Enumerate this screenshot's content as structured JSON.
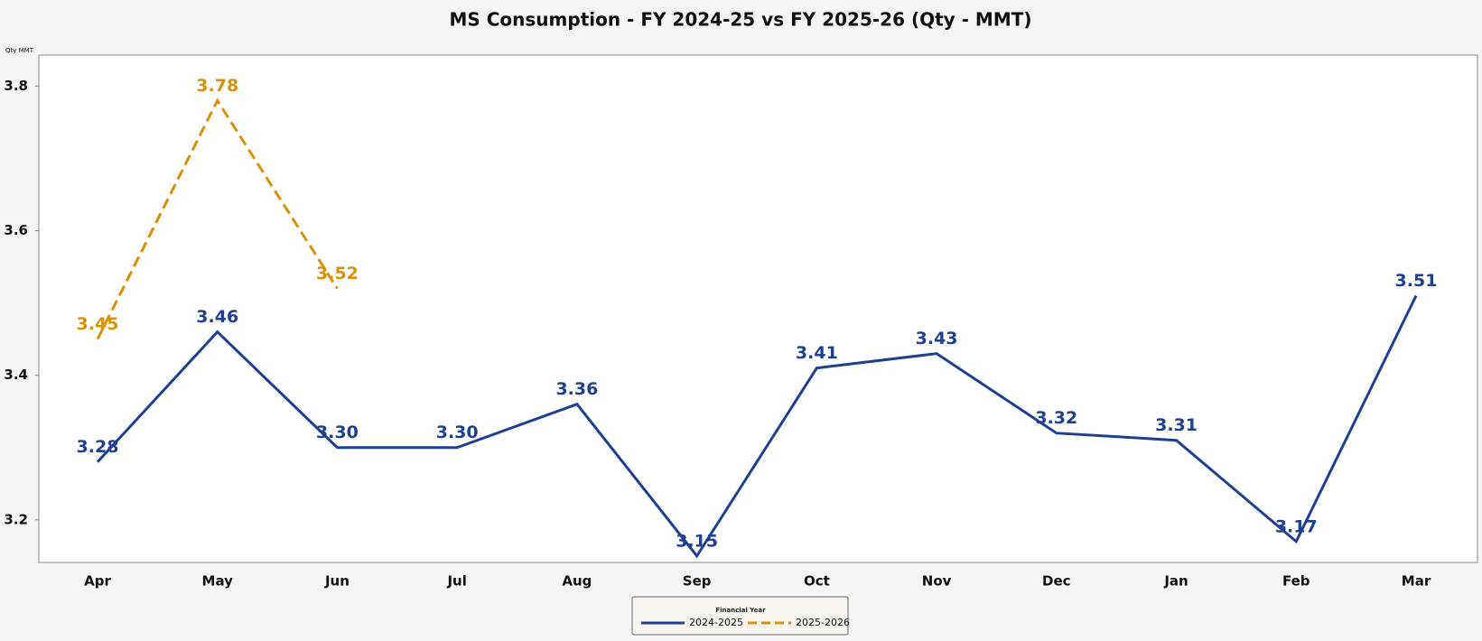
{
  "chart_data": {
    "type": "line",
    "title": "MS Consumption - FY 2024-25 vs FY 2025-26 (Qty - MMT)",
    "y_label": "Qty MMT",
    "legend_title": "Financial Year",
    "legend": "bottom",
    "categories": [
      "Apr",
      "May",
      "Jun",
      "Jul",
      "Aug",
      "Sep",
      "Oct",
      "Nov",
      "Dec",
      "Jan",
      "Feb",
      "Mar"
    ],
    "series": [
      {
        "name": "2024-2025",
        "color": "#1f3f8f",
        "dash": false,
        "values": [
          3.28,
          3.46,
          3.3,
          3.3,
          3.36,
          3.15,
          3.41,
          3.43,
          3.32,
          3.31,
          3.17,
          3.51
        ],
        "value_labels": [
          "3.28",
          "3.46",
          "3.30",
          "3.30",
          "3.36",
          "3.15",
          "3.41",
          "3.43",
          "3.32",
          "3.31",
          "3.17",
          "3.51"
        ]
      },
      {
        "name": "2025-2026",
        "color": "#d9900a",
        "dash": true,
        "values": [
          3.45,
          3.78,
          3.52,
          null,
          null,
          null,
          null,
          null,
          null,
          null,
          null,
          null
        ],
        "value_labels": [
          "3.45",
          "3.78",
          "3.52",
          null,
          null,
          null,
          null,
          null,
          null,
          null,
          null,
          null
        ]
      }
    ],
    "ylim": [
      3.141,
      3.843
    ],
    "yticks": [
      3.2,
      3.4,
      3.6,
      3.8
    ],
    "grid": false
  }
}
